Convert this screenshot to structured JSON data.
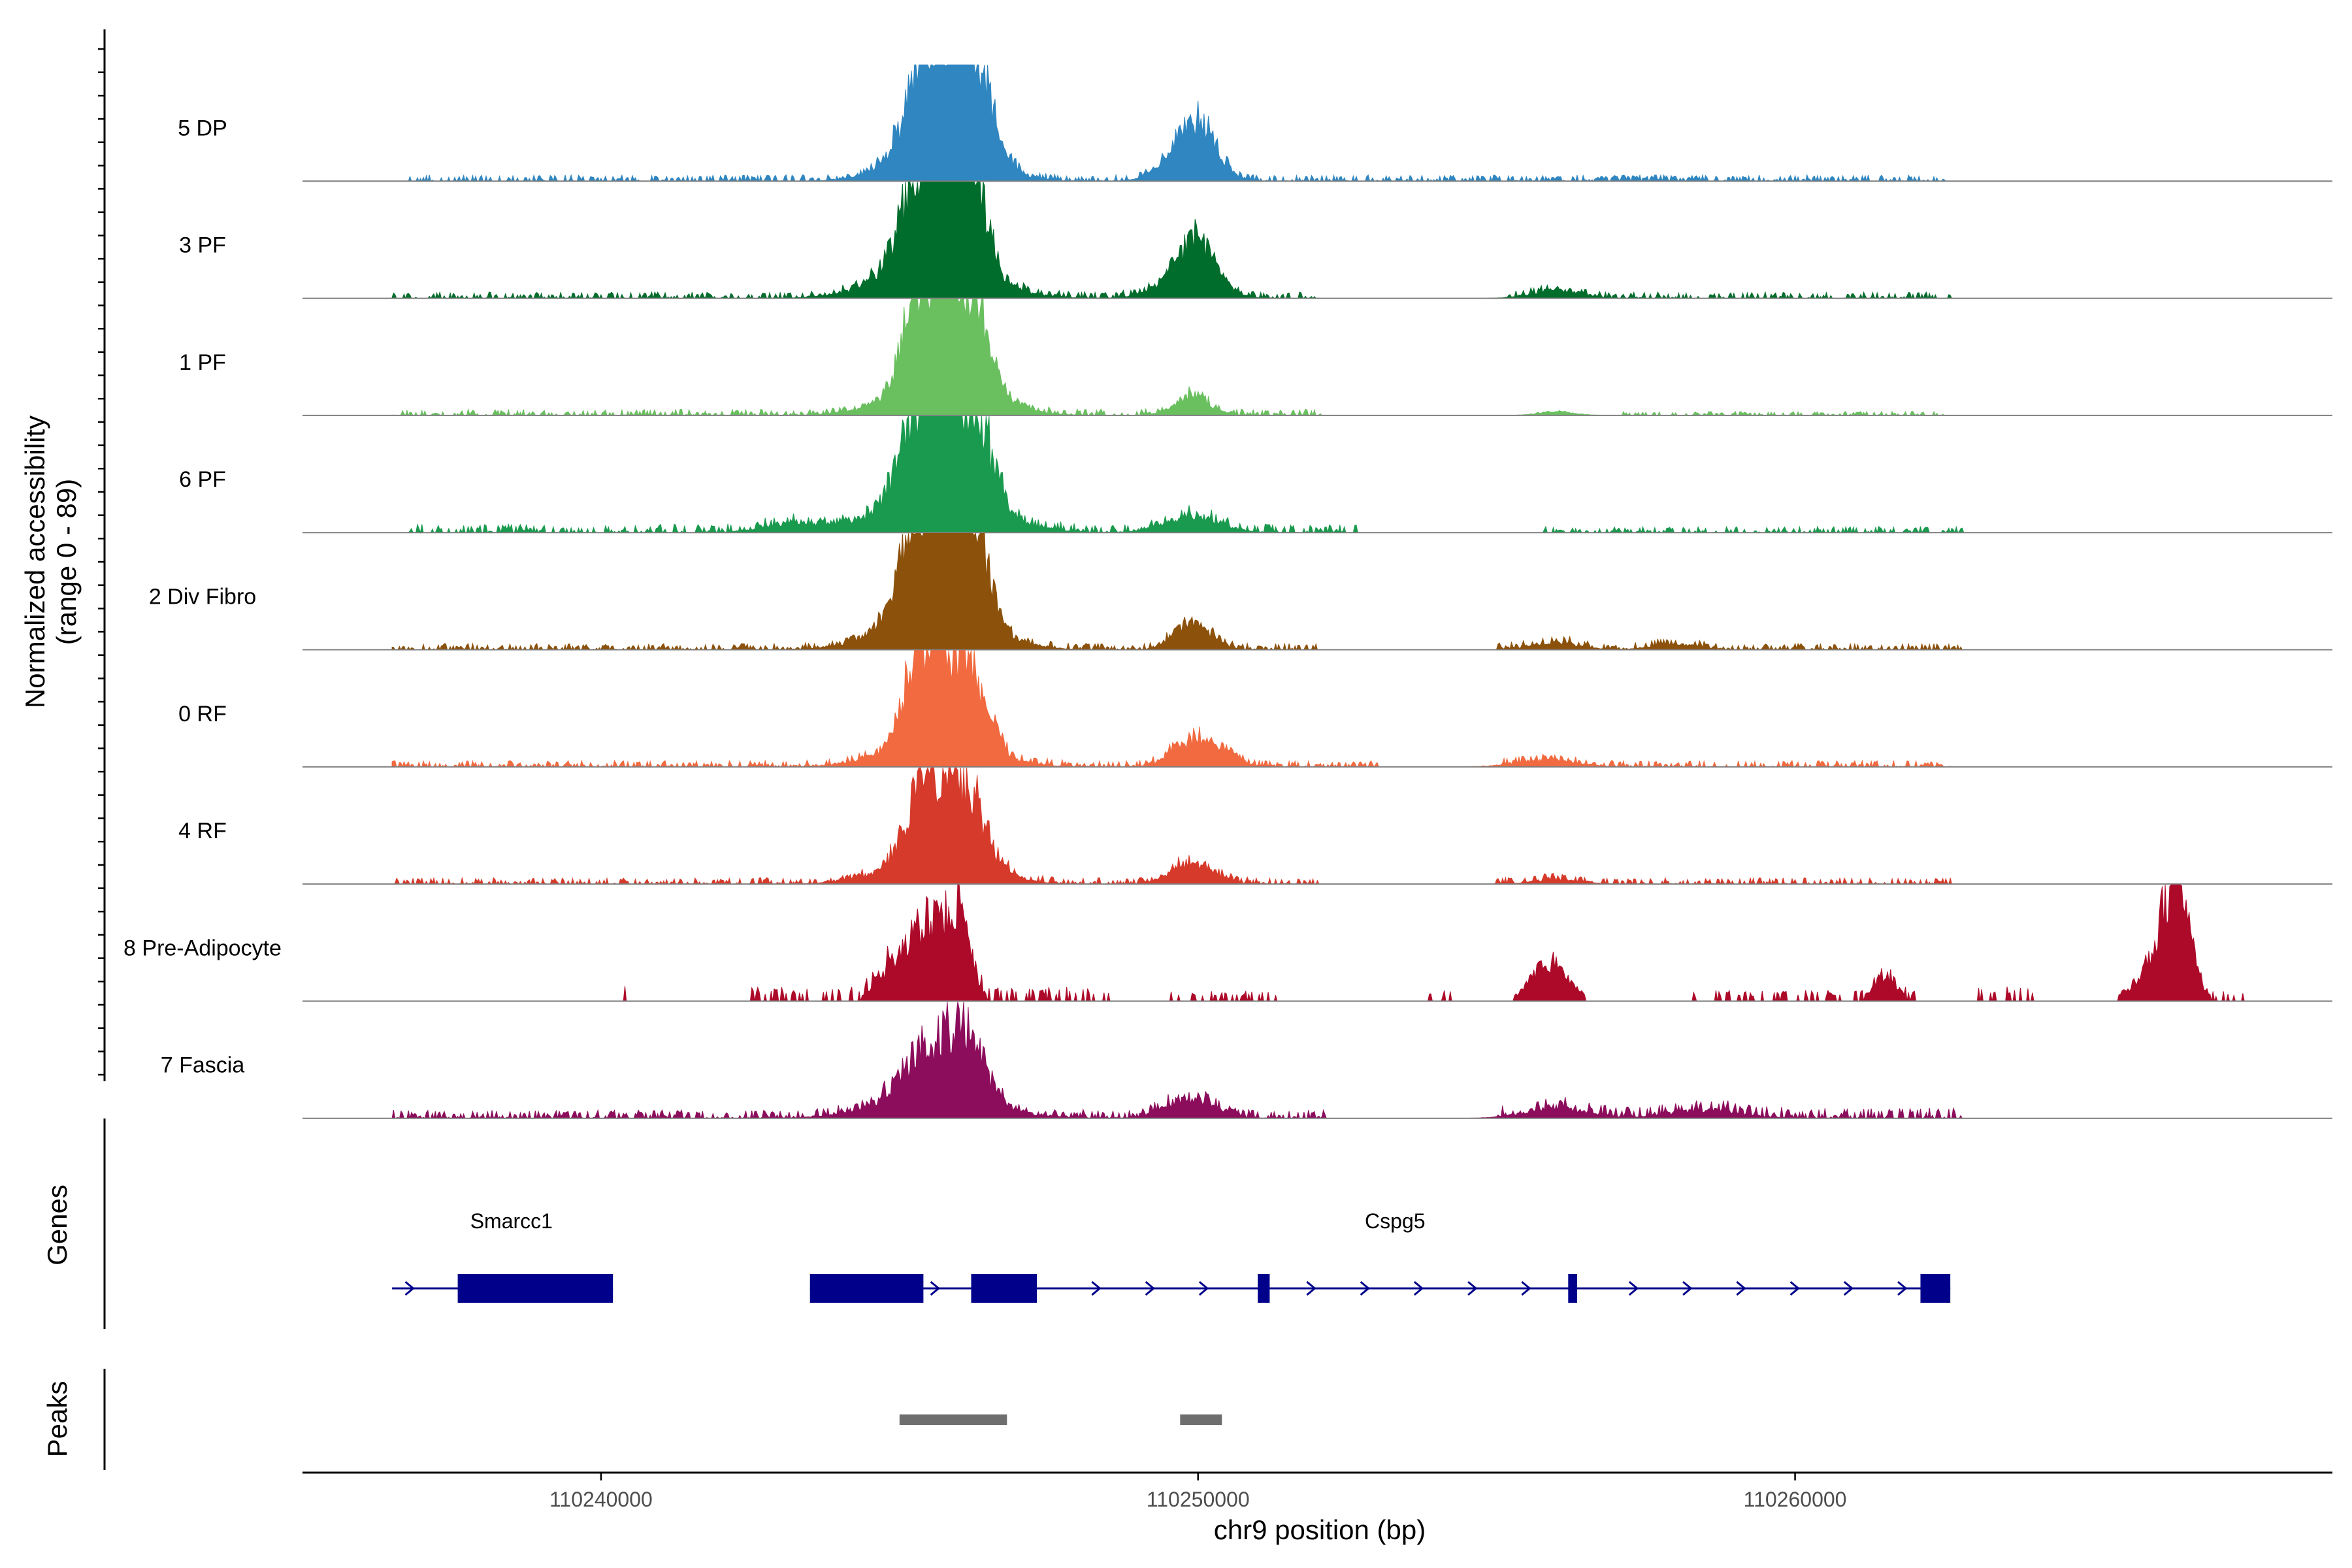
{
  "chart_data": {
    "type": "area",
    "title": "",
    "ylabel_line1": "Normalized accessibility",
    "ylabel_line2": "(range 0 - 89)",
    "ylim": [
      0,
      89
    ],
    "xlabel": "chr9 position (bp)",
    "xlim": [
      110235000,
      110269000
    ],
    "xticks": [
      110240000,
      110250000,
      110260000
    ],
    "xtick_labels": [
      "110240000",
      "110250000",
      "110260000"
    ],
    "tracks": [
      {
        "name": "5 DP",
        "color": "#2f86c0",
        "baseline": 1.0,
        "peaks": [
          [
            110245400,
            60,
            300
          ],
          [
            110245900,
            62,
            300
          ],
          [
            110246300,
            50,
            300
          ],
          [
            110245700,
            30,
            700
          ],
          [
            110250000,
            32,
            300
          ],
          [
            110249800,
            18,
            400
          ]
        ],
        "background": [
          [
            110236800,
            110258500,
            3
          ],
          [
            110256700,
            110262500,
            3
          ]
        ]
      },
      {
        "name": "3 PF",
        "color": "#006d2c",
        "baseline": 1.5,
        "peaks": [
          [
            110245300,
            58,
            300
          ],
          [
            110245800,
            64,
            300
          ],
          [
            110246200,
            70,
            250
          ],
          [
            110245600,
            32,
            800
          ],
          [
            110250000,
            30,
            300
          ],
          [
            110249800,
            16,
            450
          ],
          [
            110256000,
            6,
            400
          ]
        ],
        "background": [
          [
            110236500,
            110252000,
            3
          ],
          [
            110255200,
            110262600,
            3
          ]
        ]
      },
      {
        "name": "1 PF",
        "color": "#6abf5f",
        "baseline": 1.5,
        "peaks": [
          [
            110245300,
            70,
            250
          ],
          [
            110245800,
            54,
            300
          ],
          [
            110246200,
            60,
            300
          ],
          [
            110245700,
            22,
            800
          ],
          [
            110249900,
            14,
            300
          ],
          [
            110256000,
            3,
            300
          ]
        ],
        "background": [
          [
            110236500,
            110252200,
            3
          ],
          [
            110257000,
            110262500,
            2
          ]
        ]
      },
      {
        "name": "6 PF",
        "color": "#1a9a4e",
        "baseline": 1.5,
        "peaks": [
          [
            110245300,
            58,
            300
          ],
          [
            110245800,
            60,
            300
          ],
          [
            110246300,
            56,
            300
          ],
          [
            110245600,
            28,
            900
          ],
          [
            110249900,
            12,
            450
          ],
          [
            110243200,
            6,
            500
          ]
        ],
        "background": [
          [
            110236800,
            110252800,
            4
          ],
          [
            110255800,
            110262800,
            3
          ]
        ]
      },
      {
        "name": "2 Div Fibro",
        "color": "#8c510a",
        "baseline": 1.5,
        "peaks": [
          [
            110245300,
            62,
            300
          ],
          [
            110245800,
            58,
            300
          ],
          [
            110246200,
            66,
            280
          ],
          [
            110245600,
            30,
            800
          ],
          [
            110249900,
            20,
            300
          ],
          [
            110256000,
            5,
            400
          ],
          [
            110258000,
            4,
            400
          ]
        ],
        "background": [
          [
            110236500,
            110252000,
            3
          ],
          [
            110255000,
            110262800,
            3
          ]
        ]
      },
      {
        "name": "0 RF",
        "color": "#f16a40",
        "baseline": 1.5,
        "peaks": [
          [
            110245300,
            62,
            250
          ],
          [
            110245800,
            44,
            300
          ],
          [
            110246200,
            48,
            300
          ],
          [
            110245600,
            20,
            800
          ],
          [
            110249800,
            16,
            300
          ],
          [
            110250300,
            14,
            300
          ],
          [
            110255800,
            5,
            500
          ]
        ],
        "background": [
          [
            110236500,
            110253000,
            3
          ],
          [
            110255000,
            110262600,
            3
          ]
        ]
      },
      {
        "name": "4 RF",
        "color": "#d63a2a",
        "baseline": 1.5,
        "peaks": [
          [
            110245300,
            46,
            250
          ],
          [
            110245800,
            36,
            300
          ],
          [
            110246200,
            42,
            300
          ],
          [
            110245600,
            18,
            800
          ],
          [
            110249900,
            16,
            350
          ],
          [
            110256000,
            3,
            400
          ]
        ],
        "background": [
          [
            110236500,
            110252000,
            3
          ],
          [
            110255000,
            110262600,
            3
          ]
        ]
      },
      {
        "name": "8 Pre-Adipocyte",
        "color": "#ad0a2a",
        "baseline": 1.5,
        "peaks": [
          [
            110245500,
            52,
            250
          ],
          [
            110246000,
            62,
            200
          ],
          [
            110245000,
            30,
            300
          ],
          [
            110255900,
            30,
            300
          ],
          [
            110261500,
            18,
            200
          ],
          [
            110266400,
            74,
            220
          ],
          [
            110266100,
            30,
            350
          ]
        ],
        "background": [
          [
            110240300,
            110240400,
            10
          ],
          [
            110242500,
            110248600,
            8
          ],
          [
            110249500,
            110251300,
            6
          ],
          [
            110253800,
            110254300,
            6
          ],
          [
            110258300,
            110262000,
            6
          ],
          [
            110263000,
            110264000,
            8
          ],
          [
            110267000,
            110267500,
            6
          ]
        ]
      },
      {
        "name": "7 Fascia",
        "color": "#8c0d5c",
        "baseline": 1.5,
        "peaks": [
          [
            110245300,
            28,
            350
          ],
          [
            110245900,
            30,
            350
          ],
          [
            110246200,
            28,
            300
          ],
          [
            110245600,
            16,
            900
          ],
          [
            110249900,
            16,
            400
          ],
          [
            110256000,
            8,
            500
          ],
          [
            110258500,
            6,
            600
          ]
        ],
        "background": [
          [
            110236500,
            110252200,
            4
          ],
          [
            110255000,
            110262800,
            5
          ]
        ]
      }
    ],
    "genes": [
      {
        "name": "Smarcc1",
        "strand": "+",
        "start": 110236500,
        "end": 110240200,
        "exons": [
          [
            110237600,
            110240200
          ]
        ],
        "label_pos": 110238500
      },
      {
        "name": "Cspg5",
        "strand": "+",
        "start": 110243500,
        "end": 110262600,
        "exons": [
          [
            110243500,
            110245400
          ],
          [
            110246200,
            110247300
          ],
          [
            110251000,
            110251200
          ],
          [
            110256200,
            110256350
          ],
          [
            110262100,
            110262600
          ]
        ],
        "label_pos": 110253300
      }
    ],
    "peaks_track": [
      [
        110245000,
        110246800
      ],
      [
        110249700,
        110250400
      ]
    ],
    "panel_labels": {
      "genes": "Genes",
      "peaks": "Peaks"
    },
    "colors": {
      "axis": "#000000",
      "baseline": "#7f7f7f",
      "gene": "#00008b",
      "peak": "#6e6e6e"
    }
  }
}
